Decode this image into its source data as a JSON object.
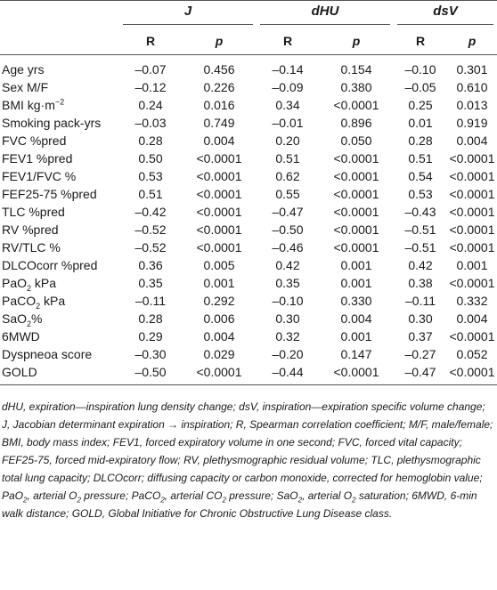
{
  "groups": [
    "J",
    "dHU",
    "dsV"
  ],
  "subheaders": [
    "R",
    "p",
    "R",
    "p",
    "R",
    "p"
  ],
  "rows": [
    {
      "label": "Age yrs",
      "values": [
        "–0.07",
        "0.456",
        "–0.14",
        "0.154",
        "–0.10",
        "0.301"
      ]
    },
    {
      "label": "Sex M/F",
      "values": [
        "–0.12",
        "0.226",
        "–0.09",
        "0.380",
        "–0.05",
        "0.610"
      ]
    },
    {
      "label_html": "BMI kg·m<sup>−2</sup>",
      "label": "BMI kg·m−2",
      "values": [
        "0.24",
        "0.016",
        "0.34",
        "<0.0001",
        "0.25",
        "0.013"
      ]
    },
    {
      "label": "Smoking pack-yrs",
      "values": [
        "–0.03",
        "0.749",
        "–0.01",
        "0.896",
        "0.01",
        "0.919"
      ]
    },
    {
      "label": "FVC %pred",
      "values": [
        "0.28",
        "0.004",
        "0.20",
        "0.050",
        "0.28",
        "0.004"
      ]
    },
    {
      "label": "FEV1 %pred",
      "values": [
        "0.50",
        "<0.0001",
        "0.51",
        "<0.0001",
        "0.51",
        "<0.0001"
      ]
    },
    {
      "label": "FEV1/FVC %",
      "values": [
        "0.53",
        "<0.0001",
        "0.62",
        "<0.0001",
        "0.54",
        "<0.0001"
      ]
    },
    {
      "label": "FEF25-75 %pred",
      "values": [
        "0.51",
        "<0.0001",
        "0.55",
        "<0.0001",
        "0.53",
        "<0.0001"
      ]
    },
    {
      "label": "TLC %pred",
      "values": [
        "–0.42",
        "<0.0001",
        "–0.47",
        "<0.0001",
        "–0.43",
        "<0.0001"
      ]
    },
    {
      "label": "RV %pred",
      "values": [
        "–0.52",
        "<0.0001",
        "–0.50",
        "<0.0001",
        "–0.51",
        "<0.0001"
      ]
    },
    {
      "label": "RV/TLC %",
      "values": [
        "–0.52",
        "<0.0001",
        "–0.46",
        "<0.0001",
        "–0.51",
        "<0.0001"
      ]
    },
    {
      "label": "DLCOcorr %pred",
      "values": [
        "0.36",
        "0.005",
        "0.42",
        "0.001",
        "0.42",
        "0.001"
      ]
    },
    {
      "label_html": "PaO<sub>2</sub> kPa",
      "label": "PaO2 kPa",
      "values": [
        "0.35",
        "0.001",
        "0.35",
        "0.001",
        "0.38",
        "<0.0001"
      ]
    },
    {
      "label_html": "PaCO<sub>2</sub> kPa",
      "label": "PaCO2 kPa",
      "values": [
        "–0.11",
        "0.292",
        "–0.10",
        "0.330",
        "–0.11",
        "0.332"
      ]
    },
    {
      "label_html": "SaO<sub>2</sub>%",
      "label": "SaO2%",
      "values": [
        "0.28",
        "0.006",
        "0.30",
        "0.004",
        "0.30",
        "0.004"
      ]
    },
    {
      "label": "6MWD",
      "values": [
        "0.29",
        "0.004",
        "0.32",
        "0.001",
        "0.37",
        "<0.0001"
      ]
    },
    {
      "label": "Dyspneoa score",
      "values": [
        "–0.30",
        "0.029",
        "–0.20",
        "0.147",
        "–0.27",
        "0.052"
      ]
    },
    {
      "label": "GOLD",
      "values": [
        "–0.50",
        "<0.0001",
        "–0.44",
        "<0.0001",
        "–0.47",
        "<0.0001"
      ]
    }
  ],
  "footnote_html": "dHU, expiration—inspiration lung density change; dsV, inspiration—expiration specific volume change; J, Jacobian determinant expiration → inspiration; R, Spearman correlation coefficient; M/F, male/female; BMI, body mass index; FEV1, forced expiratory volume in one second; FVC, forced vital capacity; FEF25-75, forced mid-expiratory flow; RV, plethysmographic residual volume; TLC, plethysmographic total lung capacity; DLCOcorr; diffusing capacity or carbon monoxide, corrected for hemoglobin value; PaO<sub>2</sub>, arterial O<sub>2</sub> pressure; PaCO<sub>2</sub>, arterial CO<sub>2</sub> pressure; SaO<sub>2</sub>, arterial O<sub>2</sub> saturation; 6MWD, 6-min walk distance; GOLD, Global Initiative for Chronic Obstructive Lung Disease class.",
  "footnote": "dHU, expiration—inspiration lung density change; dsV, inspiration—expiration specific volume change; J, Jacobian determinant expiration → inspiration; R, Spearman correlation coefficient; M/F, male/female; BMI, body mass index; FEV1, forced expiratory volume in one second; FVC, forced vital capacity; FEF25-75, forced mid-expiratory flow; RV, plethysmographic residual volume; TLC, plethysmographic total lung capacity; DLCOcorr; diffusing capacity or carbon monoxide, corrected for hemoglobin value; PaO2, arterial O2 pressure; PaCO2, arterial CO2 pressure; SaO2, arterial O2 saturation; 6MWD, 6-min walk distance; GOLD, Global Initiative for Chronic Obstructive Lung Disease class."
}
